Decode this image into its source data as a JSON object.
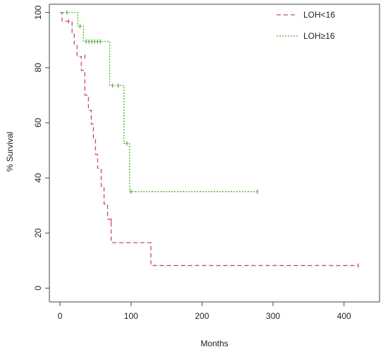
{
  "chart_data": {
    "type": "line",
    "subtype": "kaplan-meier-step",
    "xlabel": "Months",
    "ylabel": "% Survival",
    "xlim": [
      -15,
      450
    ],
    "ylim": [
      -5,
      103
    ],
    "xticks": [
      0,
      100,
      200,
      300,
      400
    ],
    "yticks": [
      0,
      20,
      40,
      60,
      80,
      100
    ],
    "grid": false,
    "legend_position": "top-right",
    "series": [
      {
        "name": "LOH<16",
        "color": "#c9457a",
        "line_style": "dashed",
        "steps": [
          [
            0,
            100
          ],
          [
            3,
            96.8
          ],
          [
            17,
            92.5
          ],
          [
            20,
            88.5
          ],
          [
            24,
            84
          ],
          [
            30,
            79
          ],
          [
            35,
            70
          ],
          [
            40,
            64.5
          ],
          [
            44,
            59.5
          ],
          [
            47,
            54
          ],
          [
            50,
            48.5
          ],
          [
            53,
            43.5
          ],
          [
            58,
            37
          ],
          [
            62,
            30.5
          ],
          [
            67,
            25
          ],
          [
            72,
            16.5
          ],
          [
            128,
            8.2
          ],
          [
            420,
            8.2
          ]
        ],
        "censored": [
          [
            12,
            96.8
          ],
          [
            35,
            84
          ],
          [
            72,
            24.5
          ],
          [
            420,
            8.2
          ]
        ]
      },
      {
        "name": "LOH≥16",
        "color": "#4caf2f",
        "line_style": "dotted",
        "steps": [
          [
            0,
            100
          ],
          [
            25,
            95
          ],
          [
            33,
            89.5
          ],
          [
            70,
            73.5
          ],
          [
            90,
            52.5
          ],
          [
            98,
            35
          ],
          [
            278,
            35
          ]
        ],
        "censored": [
          [
            10,
            100
          ],
          [
            28,
            95
          ],
          [
            37,
            89.5
          ],
          [
            41,
            89.5
          ],
          [
            45,
            89.5
          ],
          [
            49,
            89.5
          ],
          [
            53,
            89.5
          ],
          [
            57,
            89.5
          ],
          [
            74,
            73.5
          ],
          [
            82,
            73.5
          ],
          [
            94,
            52.5
          ],
          [
            100,
            35
          ],
          [
            278,
            35
          ]
        ]
      }
    ]
  }
}
